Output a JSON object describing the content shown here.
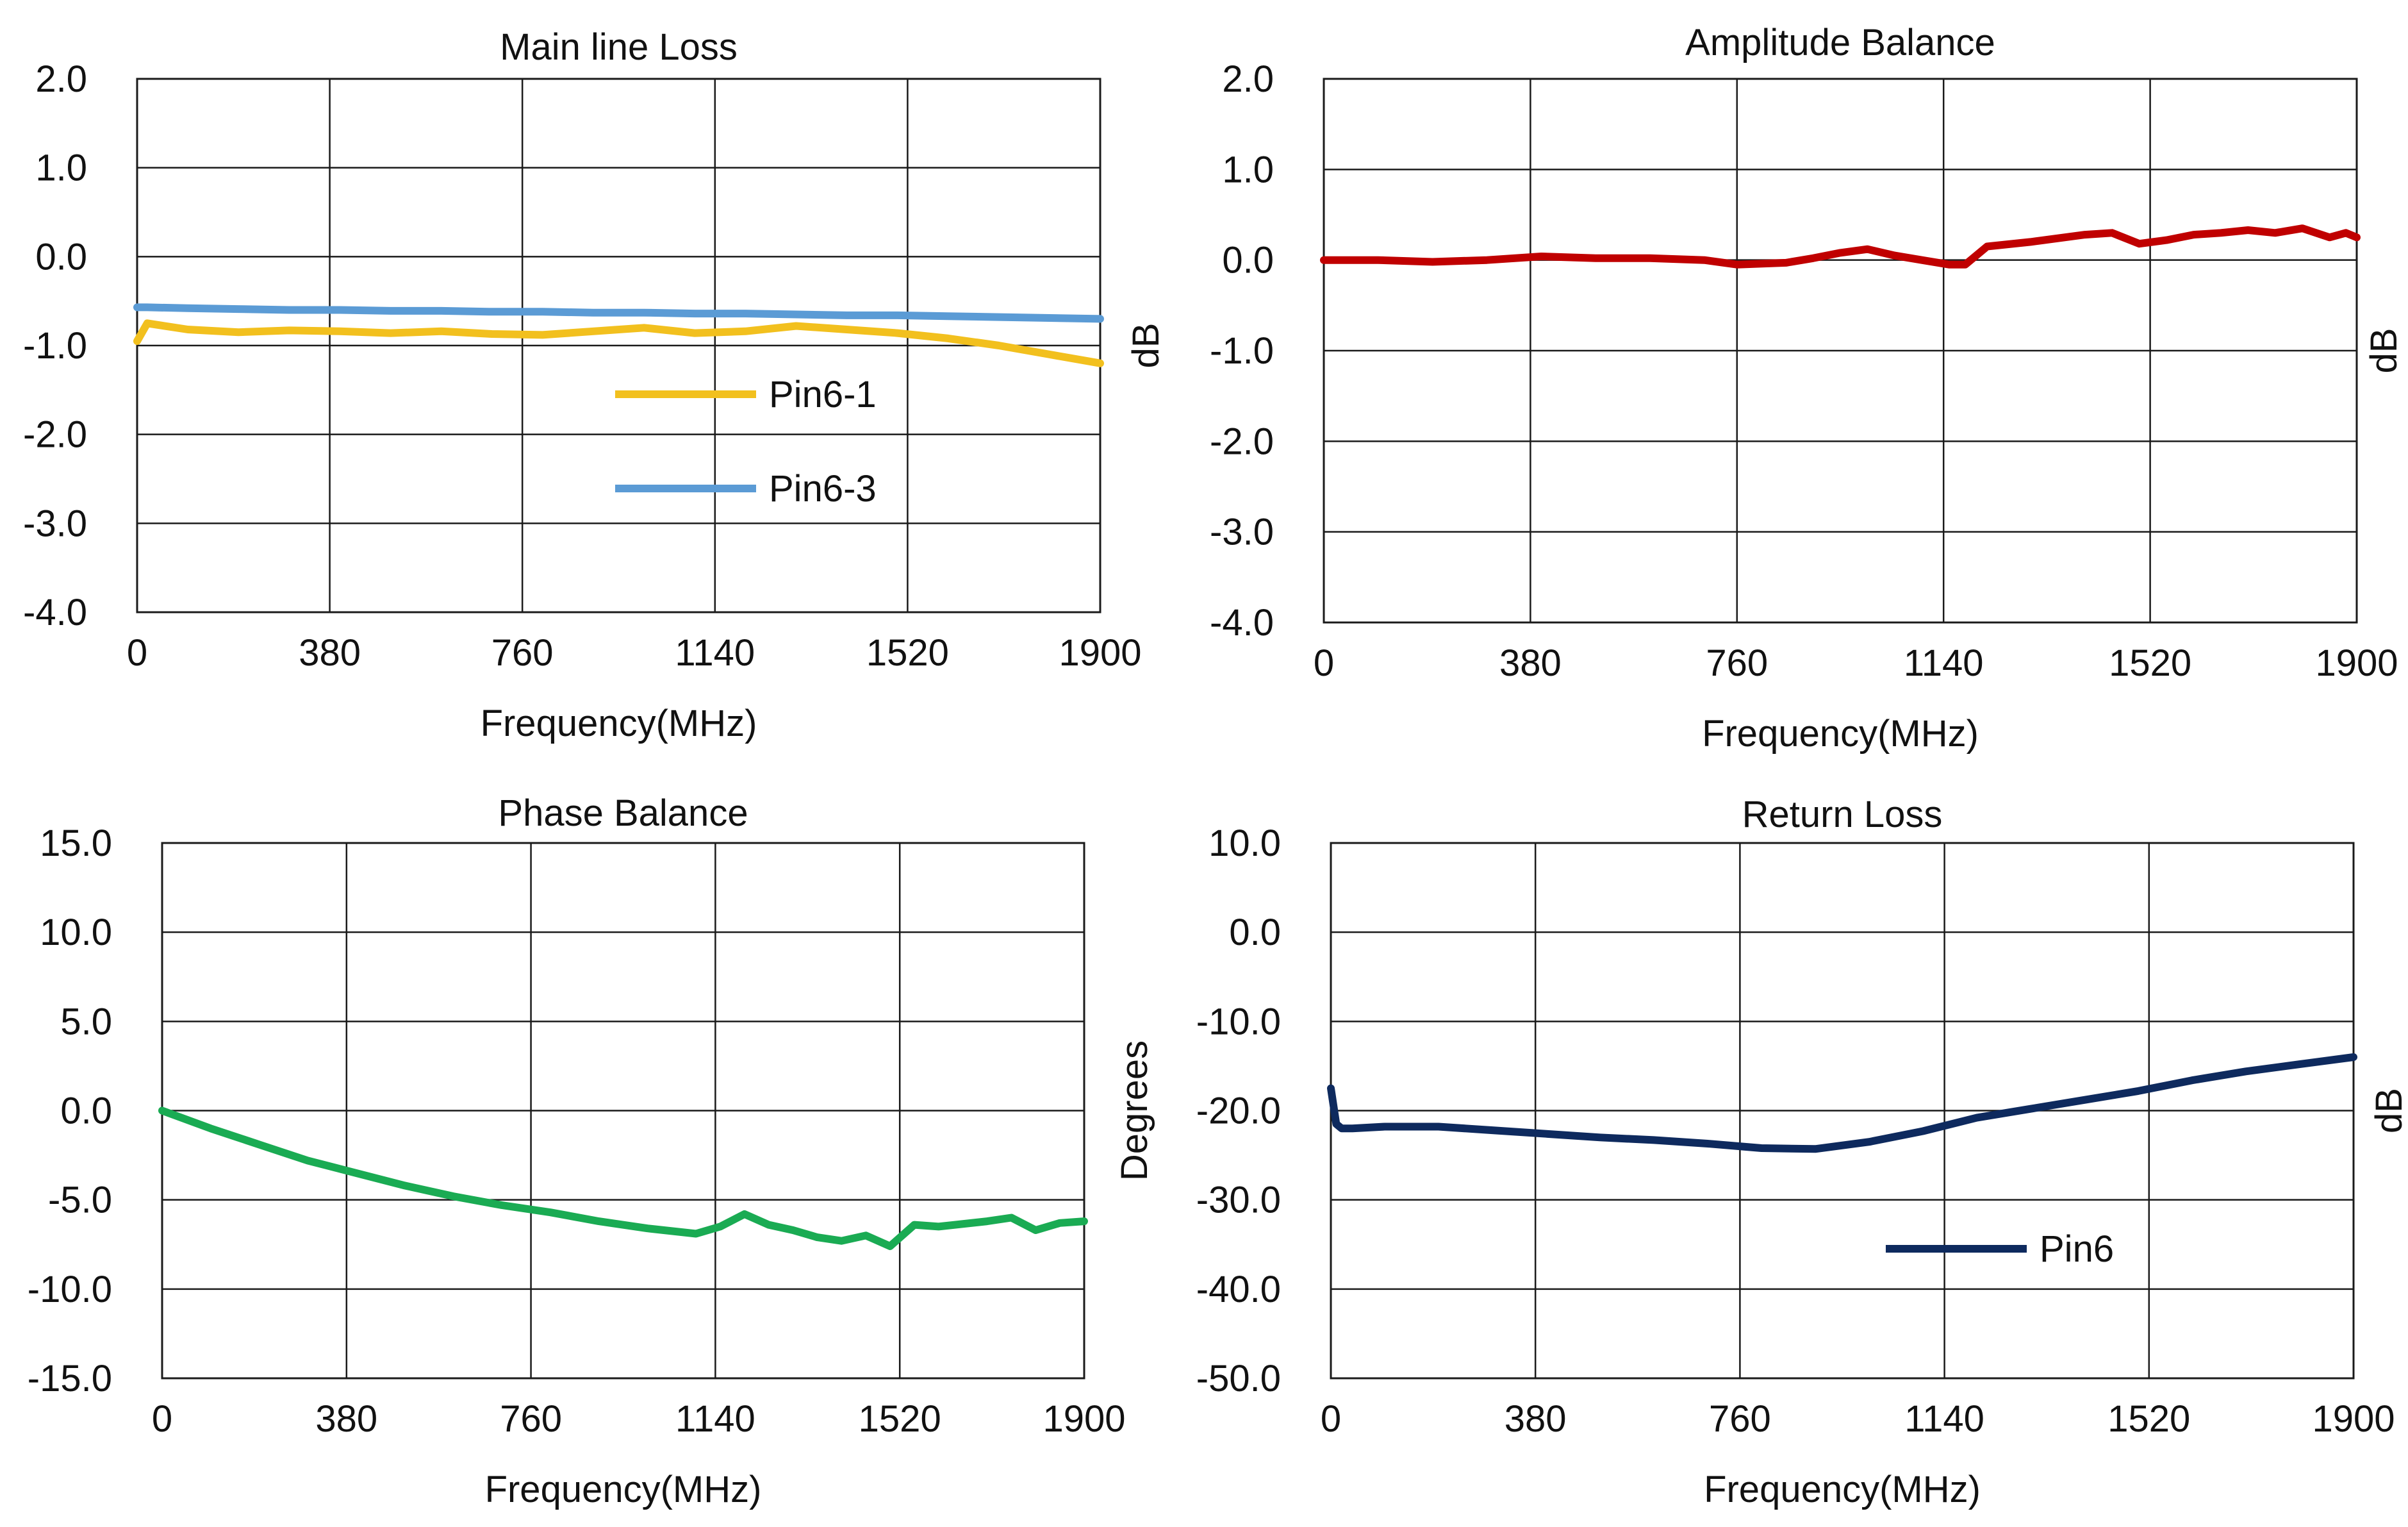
{
  "chart_data": [
    {
      "type": "line",
      "title": "Main line Loss",
      "xlabel": "Frequency(MHz)",
      "ylabel": "dB",
      "xlim": [
        0,
        1900
      ],
      "ylim": [
        -4.0,
        2.0
      ],
      "x_ticks": [
        "0",
        "380",
        "760",
        "1140",
        "1520",
        "1900"
      ],
      "y_ticks": [
        "2.0",
        "1.0",
        "0.0",
        "-1.0",
        "-2.0",
        "-3.0",
        "-4.0"
      ],
      "grid": true,
      "legend_position": "inside-center",
      "x": [
        0,
        20,
        100,
        200,
        300,
        400,
        500,
        600,
        700,
        800,
        900,
        1000,
        1100,
        1200,
        1300,
        1400,
        1500,
        1600,
        1700,
        1800,
        1900
      ],
      "series": [
        {
          "name": "Pin6-1",
          "color": "#f2c01e",
          "values": [
            -0.95,
            -0.75,
            -0.82,
            -0.85,
            -0.83,
            -0.84,
            -0.86,
            -0.84,
            -0.87,
            -0.88,
            -0.84,
            -0.8,
            -0.86,
            -0.84,
            -0.78,
            -0.82,
            -0.86,
            -0.92,
            -1.0,
            -1.1,
            -1.2
          ]
        },
        {
          "name": "Pin6-3",
          "color": "#5b9bd5",
          "values": [
            -0.57,
            -0.57,
            -0.58,
            -0.59,
            -0.6,
            -0.6,
            -0.61,
            -0.61,
            -0.62,
            -0.62,
            -0.63,
            -0.63,
            -0.64,
            -0.64,
            -0.65,
            -0.66,
            -0.66,
            -0.67,
            -0.68,
            -0.69,
            -0.7
          ]
        }
      ]
    },
    {
      "type": "line",
      "title": "Amplitude Balance",
      "xlabel": "Frequency(MHz)",
      "ylabel": "dB",
      "xlim": [
        0,
        1900
      ],
      "ylim": [
        -4.0,
        2.0
      ],
      "x_ticks": [
        "0",
        "380",
        "760",
        "1140",
        "1520",
        "1900"
      ],
      "y_ticks": [
        "2.0",
        "1.0",
        "0.0",
        "-1.0",
        "-2.0",
        "-3.0",
        "-4.0"
      ],
      "grid": true,
      "x": [
        0,
        100,
        200,
        300,
        400,
        500,
        600,
        700,
        760,
        850,
        900,
        950,
        1000,
        1050,
        1100,
        1150,
        1180,
        1220,
        1300,
        1400,
        1450,
        1500,
        1550,
        1600,
        1650,
        1700,
        1750,
        1800,
        1850,
        1880,
        1900
      ],
      "series": [
        {
          "name": "",
          "color": "#c00000",
          "values": [
            0.0,
            0.0,
            -0.02,
            0.0,
            0.04,
            0.02,
            0.02,
            0.0,
            -0.05,
            -0.03,
            0.02,
            0.08,
            0.12,
            0.05,
            0.0,
            -0.05,
            -0.05,
            0.15,
            0.2,
            0.28,
            0.3,
            0.18,
            0.22,
            0.28,
            0.3,
            0.33,
            0.3,
            0.35,
            0.25,
            0.3,
            0.25
          ]
        }
      ]
    },
    {
      "type": "line",
      "title": "Phase Balance",
      "xlabel": "Frequency(MHz)",
      "ylabel": "Degrees",
      "xlim": [
        0,
        1900
      ],
      "ylim": [
        -15.0,
        15.0
      ],
      "x_ticks": [
        "0",
        "380",
        "760",
        "1140",
        "1520",
        "1900"
      ],
      "y_ticks": [
        "15.0",
        "10.0",
        "5.0",
        "0.0",
        "-5.0",
        "-10.0",
        "-15.0"
      ],
      "grid": true,
      "x": [
        0,
        100,
        200,
        300,
        400,
        500,
        600,
        700,
        800,
        900,
        1000,
        1100,
        1150,
        1200,
        1250,
        1300,
        1350,
        1400,
        1450,
        1500,
        1550,
        1600,
        1700,
        1750,
        1800,
        1850,
        1900
      ],
      "series": [
        {
          "name": "",
          "color": "#1aab53",
          "values": [
            0.0,
            -1.0,
            -1.9,
            -2.8,
            -3.5,
            -4.2,
            -4.8,
            -5.3,
            -5.7,
            -6.2,
            -6.6,
            -6.9,
            -6.5,
            -5.8,
            -6.4,
            -6.7,
            -7.1,
            -7.3,
            -7.0,
            -7.6,
            -6.4,
            -6.5,
            -6.2,
            -6.0,
            -6.7,
            -6.3,
            -6.2
          ]
        }
      ]
    },
    {
      "type": "line",
      "title": "Return Loss",
      "xlabel": "Frequency(MHz)",
      "ylabel": "dB",
      "xlim": [
        0,
        1900
      ],
      "ylim": [
        -50.0,
        10.0
      ],
      "x_ticks": [
        "0",
        "380",
        "760",
        "1140",
        "1520",
        "1900"
      ],
      "y_ticks": [
        "10.0",
        "0.0",
        "-10.0",
        "-20.0",
        "-30.0",
        "-40.0",
        "-50.0"
      ],
      "grid": true,
      "legend_position": "inside-bottom-right",
      "x": [
        0,
        10,
        20,
        40,
        100,
        200,
        300,
        400,
        500,
        600,
        700,
        800,
        900,
        1000,
        1100,
        1200,
        1300,
        1400,
        1500,
        1600,
        1700,
        1800,
        1900
      ],
      "series": [
        {
          "name": "Pin6",
          "color": "#0e2a5e",
          "values": [
            -17.5,
            -21.5,
            -22.0,
            -22.0,
            -21.8,
            -21.8,
            -22.2,
            -22.6,
            -23.0,
            -23.3,
            -23.7,
            -24.2,
            -24.3,
            -23.5,
            -22.3,
            -20.8,
            -19.8,
            -18.8,
            -17.8,
            -16.6,
            -15.6,
            -14.8,
            -14.0
          ]
        }
      ]
    }
  ]
}
